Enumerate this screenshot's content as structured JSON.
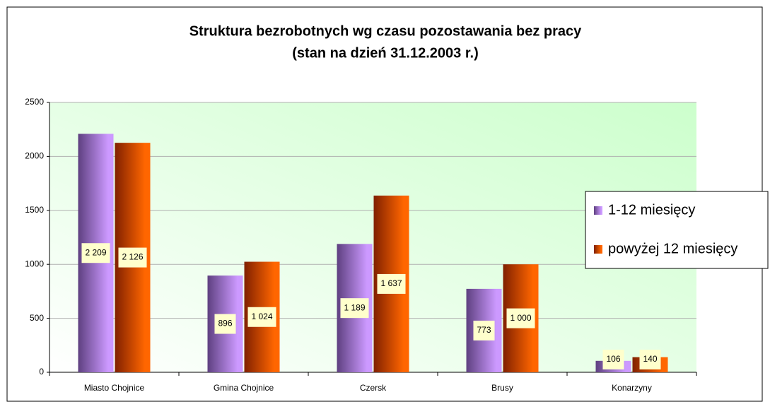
{
  "chart_data": {
    "type": "bar",
    "title": "Struktura bezrobotnych wg czasu pozostawania bez pracy",
    "subtitle": "(stan na dzień 31.12.2003 r.)",
    "categories": [
      "Miasto Chojnice",
      "Gmina Chojnice",
      "Czersk",
      "Brusy",
      "Konarzyny"
    ],
    "series": [
      {
        "name": "1-12 miesięcy",
        "color": "#cc99ff",
        "values": [
          2209,
          896,
          1189,
          773,
          106
        ],
        "value_labels": [
          "2 209",
          "896",
          "1 189",
          "773",
          "106"
        ]
      },
      {
        "name": "powyżej 12 miesięcy",
        "color": "#ff6600",
        "values": [
          2126,
          1024,
          1637,
          1000,
          140
        ],
        "value_labels": [
          "2 126",
          "1 024",
          "1 637",
          "1 000",
          "140"
        ]
      }
    ],
    "ylim": [
      0,
      2500
    ],
    "yticks": [
      0,
      500,
      1000,
      1500,
      2000,
      2500
    ],
    "grid": true,
    "legend": "right"
  }
}
